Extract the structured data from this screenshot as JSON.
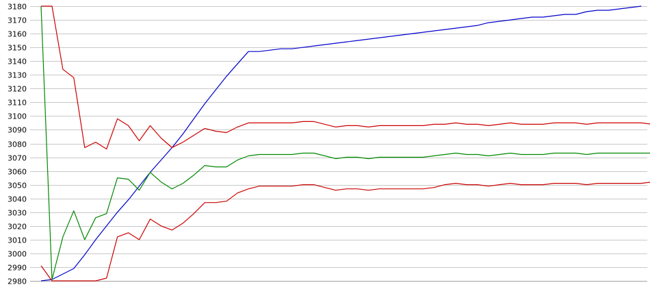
{
  "chart_data": {
    "type": "line",
    "title": "",
    "xlabel": "",
    "ylabel": "",
    "ylim": [
      2980,
      3180
    ],
    "yticks": [
      2980,
      2990,
      3000,
      3010,
      3020,
      3030,
      3040,
      3050,
      3060,
      3070,
      3080,
      3090,
      3100,
      3110,
      3120,
      3130,
      3140,
      3150,
      3160,
      3170,
      3180
    ],
    "grid": true,
    "legend": "none",
    "series": [
      {
        "color": "#0000cc",
        "values": [
          2980,
          2981,
          2985,
          2989,
          2999,
          3010,
          3020,
          3030,
          3039,
          3049,
          3059,
          3068,
          3077,
          3087,
          3098,
          3109,
          3119,
          3129,
          3138,
          3147,
          3147,
          3148,
          3149,
          3149,
          3150,
          3151,
          3152,
          3153,
          3154,
          3155,
          3156,
          3157,
          3158,
          3159,
          3160,
          3161,
          3162,
          3163,
          3164,
          3165,
          3166,
          3168,
          3169,
          3170,
          3171,
          3172,
          3172,
          3173,
          3174,
          3174,
          3176,
          3177,
          3177,
          3178,
          3179,
          3180
        ]
      },
      {
        "color": "#cc0000",
        "values": [
          3180,
          3180,
          3134,
          3128,
          3077,
          3081,
          3076,
          3098,
          3093,
          3082,
          3093,
          3084,
          3077,
          3081,
          3086,
          3091,
          3089,
          3088,
          3092,
          3095,
          3095,
          3095,
          3095,
          3095,
          3096,
          3096,
          3094,
          3092,
          3093,
          3093,
          3092,
          3093,
          3093,
          3093,
          3093,
          3093,
          3094,
          3094,
          3095,
          3094,
          3094,
          3093,
          3094,
          3095,
          3094,
          3094,
          3094,
          3095,
          3095,
          3095,
          3094,
          3095,
          3095,
          3095,
          3095,
          3095,
          3094,
          3093,
          3098
        ]
      },
      {
        "color": "#008800",
        "values": [
          3180,
          2981,
          3012,
          3031,
          3010,
          3026,
          3029,
          3055,
          3054,
          3046,
          3059,
          3052,
          3047,
          3051,
          3057,
          3064,
          3063,
          3063,
          3068,
          3071,
          3072,
          3072,
          3072,
          3072,
          3073,
          3073,
          3071,
          3069,
          3070,
          3070,
          3069,
          3070,
          3070,
          3070,
          3070,
          3070,
          3071,
          3072,
          3073,
          3072,
          3072,
          3071,
          3072,
          3073,
          3072,
          3072,
          3072,
          3073,
          3073,
          3073,
          3072,
          3073,
          3073,
          3073,
          3073,
          3073,
          3073,
          3072,
          3078
        ]
      },
      {
        "color": "#cc0000",
        "values": [
          2991,
          2980,
          2980,
          2980,
          2980,
          2980,
          2982,
          3012,
          3015,
          3010,
          3025,
          3020,
          3017,
          3022,
          3029,
          3037,
          3037,
          3038,
          3044,
          3047,
          3049,
          3049,
          3049,
          3049,
          3050,
          3050,
          3048,
          3046,
          3047,
          3047,
          3046,
          3047,
          3047,
          3047,
          3047,
          3047,
          3048,
          3050,
          3051,
          3050,
          3050,
          3049,
          3050,
          3051,
          3050,
          3050,
          3050,
          3051,
          3051,
          3051,
          3050,
          3051,
          3051,
          3051,
          3051,
          3051,
          3052,
          3051,
          3058
        ]
      }
    ]
  }
}
